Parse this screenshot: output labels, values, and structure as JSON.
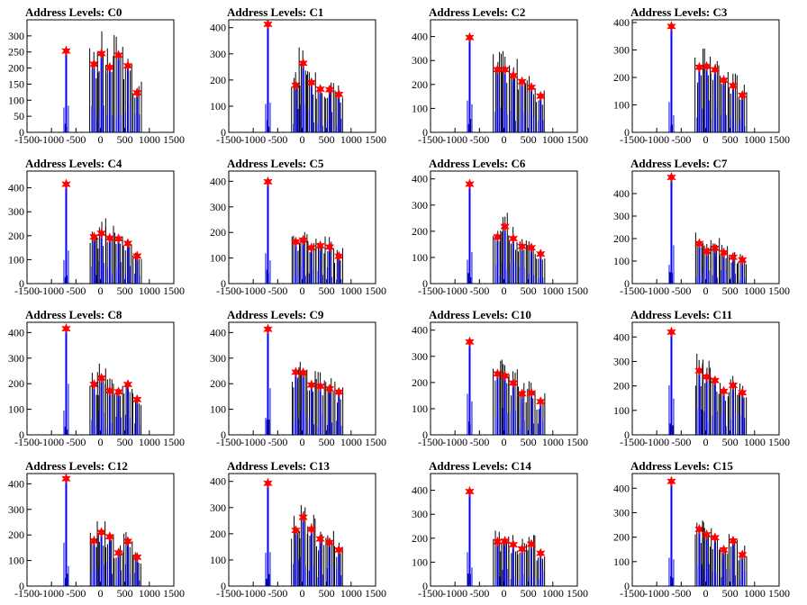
{
  "chart_data": [
    {
      "type": "bar",
      "title": "Address Levels: C0",
      "xlim": [
        -1500,
        1500
      ],
      "ylim": [
        0,
        350
      ],
      "yticks": [
        0,
        50,
        100,
        150,
        200,
        250,
        300
      ],
      "xticks": [
        -1500,
        -1000,
        -500,
        0,
        500,
        1000,
        1500
      ],
      "xtick_labels": [
        "-1500",
        "-1000",
        "-500",
        "0",
        "500",
        "1000",
        "1500"
      ],
      "peaks": [
        {
          "x": -700,
          "y": 253
        },
        {
          "x": -130,
          "y": 212
        },
        {
          "x": 20,
          "y": 245
        },
        {
          "x": 190,
          "y": 202
        },
        {
          "x": 370,
          "y": 240
        },
        {
          "x": 560,
          "y": 207
        },
        {
          "x": 750,
          "y": 123
        }
      ]
    },
    {
      "type": "bar",
      "title": "Address Levels: C1",
      "xlim": [
        -1500,
        1500
      ],
      "ylim": [
        0,
        430
      ],
      "yticks": [
        0,
        100,
        200,
        300,
        400
      ],
      "xticks": [
        -1500,
        -1000,
        -500,
        0,
        500,
        1000,
        1500
      ],
      "xtick_labels": [
        "-1500",
        "-1000",
        "-500",
        "0",
        "500",
        "1000",
        "1500"
      ],
      "peaks": [
        {
          "x": -700,
          "y": 413
        },
        {
          "x": -130,
          "y": 180
        },
        {
          "x": 20,
          "y": 264
        },
        {
          "x": 190,
          "y": 190
        },
        {
          "x": 370,
          "y": 165
        },
        {
          "x": 560,
          "y": 163
        },
        {
          "x": 750,
          "y": 145
        }
      ]
    },
    {
      "type": "bar",
      "title": "Address Levels: C2",
      "xlim": [
        -1500,
        1500
      ],
      "ylim": [
        0,
        470
      ],
      "yticks": [
        0,
        100,
        200,
        300,
        400
      ],
      "xticks": [
        -1500,
        -1000,
        -500,
        0,
        500,
        1000,
        1500
      ],
      "xtick_labels": [
        "-1500",
        "-1000",
        "-500",
        "0",
        "500",
        "1000",
        "1500"
      ],
      "peaks": [
        {
          "x": -700,
          "y": 396
        },
        {
          "x": -130,
          "y": 262
        },
        {
          "x": 20,
          "y": 262
        },
        {
          "x": 190,
          "y": 237
        },
        {
          "x": 370,
          "y": 212
        },
        {
          "x": 560,
          "y": 188
        },
        {
          "x": 750,
          "y": 151
        }
      ]
    },
    {
      "type": "bar",
      "title": "Address Levels: C3",
      "xlim": [
        -1500,
        1500
      ],
      "ylim": [
        0,
        410
      ],
      "yticks": [
        0,
        100,
        200,
        300,
        400
      ],
      "xticks": [
        -1500,
        -1000,
        -500,
        0,
        500,
        1000,
        1500
      ],
      "xtick_labels": [
        "-1500",
        "-1000",
        "-500",
        "0",
        "500",
        "1000",
        "1500"
      ],
      "peaks": [
        {
          "x": -700,
          "y": 386
        },
        {
          "x": -130,
          "y": 237
        },
        {
          "x": 20,
          "y": 240
        },
        {
          "x": 190,
          "y": 228
        },
        {
          "x": 370,
          "y": 190
        },
        {
          "x": 560,
          "y": 170
        },
        {
          "x": 750,
          "y": 135
        }
      ]
    },
    {
      "type": "bar",
      "title": "Address Levels: C4",
      "xlim": [
        -1500,
        1500
      ],
      "ylim": [
        0,
        470
      ],
      "yticks": [
        0,
        100,
        200,
        300,
        400
      ],
      "xticks": [
        -1500,
        -1000,
        -500,
        0,
        500,
        1000,
        1500
      ],
      "xtick_labels": [
        "-1500",
        "-1000",
        "-500",
        "0",
        "500",
        "1000",
        "1500"
      ],
      "peaks": [
        {
          "x": -700,
          "y": 415
        },
        {
          "x": -130,
          "y": 195
        },
        {
          "x": 20,
          "y": 210
        },
        {
          "x": 190,
          "y": 190
        },
        {
          "x": 370,
          "y": 187
        },
        {
          "x": 560,
          "y": 168
        },
        {
          "x": 750,
          "y": 115
        }
      ]
    },
    {
      "type": "bar",
      "title": "Address Levels: C5",
      "xlim": [
        -1500,
        1500
      ],
      "ylim": [
        0,
        440
      ],
      "yticks": [
        0,
        100,
        200,
        300,
        400
      ],
      "xticks": [
        -1500,
        -1000,
        -500,
        0,
        500,
        1000,
        1500
      ],
      "xtick_labels": [
        "-1500",
        "-1000",
        "-500",
        "0",
        "500",
        "1000",
        "1500"
      ],
      "peaks": [
        {
          "x": -700,
          "y": 398
        },
        {
          "x": -130,
          "y": 163
        },
        {
          "x": 20,
          "y": 170
        },
        {
          "x": 190,
          "y": 140
        },
        {
          "x": 370,
          "y": 148
        },
        {
          "x": 560,
          "y": 143
        },
        {
          "x": 750,
          "y": 107
        }
      ]
    },
    {
      "type": "bar",
      "title": "Address Levels: C6",
      "xlim": [
        -1500,
        1500
      ],
      "ylim": [
        0,
        430
      ],
      "yticks": [
        0,
        100,
        200,
        300,
        400
      ],
      "xticks": [
        -1500,
        -1000,
        -500,
        0,
        500,
        1000,
        1500
      ],
      "xtick_labels": [
        "-1500",
        "-1000",
        "-500",
        "0",
        "500",
        "1000",
        "1500"
      ],
      "peaks": [
        {
          "x": -700,
          "y": 380
        },
        {
          "x": -130,
          "y": 178
        },
        {
          "x": 20,
          "y": 218
        },
        {
          "x": 190,
          "y": 172
        },
        {
          "x": 370,
          "y": 142
        },
        {
          "x": 560,
          "y": 137
        },
        {
          "x": 750,
          "y": 113
        }
      ]
    },
    {
      "type": "bar",
      "title": "Address Levels: C7",
      "xlim": [
        -1500,
        1500
      ],
      "ylim": [
        0,
        500
      ],
      "yticks": [
        0,
        100,
        200,
        300,
        400
      ],
      "xticks": [
        -1500,
        -1000,
        -500,
        0,
        500,
        1000,
        1500
      ],
      "xtick_labels": [
        "-1500",
        "-1000",
        "-500",
        "0",
        "500",
        "1000",
        "1500"
      ],
      "peaks": [
        {
          "x": -700,
          "y": 472
        },
        {
          "x": -130,
          "y": 178
        },
        {
          "x": 20,
          "y": 143
        },
        {
          "x": 190,
          "y": 157
        },
        {
          "x": 370,
          "y": 137
        },
        {
          "x": 560,
          "y": 117
        },
        {
          "x": 750,
          "y": 105
        }
      ]
    },
    {
      "type": "bar",
      "title": "Address Levels: C8",
      "xlim": [
        -1500,
        1500
      ],
      "ylim": [
        0,
        440
      ],
      "yticks": [
        0,
        100,
        200,
        300,
        400
      ],
      "xticks": [
        -1500,
        -1000,
        -500,
        0,
        500,
        1000,
        1500
      ],
      "xtick_labels": [
        "-1500",
        "-1000",
        "-500",
        "0",
        "500",
        "1000",
        "1500"
      ],
      "peaks": [
        {
          "x": -700,
          "y": 415
        },
        {
          "x": -130,
          "y": 197
        },
        {
          "x": 20,
          "y": 222
        },
        {
          "x": 190,
          "y": 172
        },
        {
          "x": 370,
          "y": 168
        },
        {
          "x": 560,
          "y": 197
        },
        {
          "x": 750,
          "y": 138
        }
      ]
    },
    {
      "type": "bar",
      "title": "Address Levels: C9",
      "xlim": [
        -1500,
        1500
      ],
      "ylim": [
        0,
        440
      ],
      "yticks": [
        0,
        100,
        200,
        300,
        400
      ],
      "xticks": [
        -1500,
        -1000,
        -500,
        0,
        500,
        1000,
        1500
      ],
      "xtick_labels": [
        "-1500",
        "-1000",
        "-500",
        "0",
        "500",
        "1000",
        "1500"
      ],
      "peaks": [
        {
          "x": -700,
          "y": 413
        },
        {
          "x": -130,
          "y": 245
        },
        {
          "x": 20,
          "y": 243
        },
        {
          "x": 190,
          "y": 195
        },
        {
          "x": 370,
          "y": 190
        },
        {
          "x": 560,
          "y": 180
        },
        {
          "x": 750,
          "y": 167
        }
      ]
    },
    {
      "type": "bar",
      "title": "Address Levels: C10",
      "xlim": [
        -1500,
        1500
      ],
      "ylim": [
        0,
        430
      ],
      "yticks": [
        0,
        100,
        200,
        300,
        400
      ],
      "xticks": [
        -1500,
        -1000,
        -500,
        0,
        500,
        1000,
        1500
      ],
      "xtick_labels": [
        "-1500",
        "-1000",
        "-500",
        "0",
        "500",
        "1000",
        "1500"
      ],
      "peaks": [
        {
          "x": -700,
          "y": 355
        },
        {
          "x": -130,
          "y": 233
        },
        {
          "x": 20,
          "y": 225
        },
        {
          "x": 190,
          "y": 198
        },
        {
          "x": 370,
          "y": 157
        },
        {
          "x": 560,
          "y": 160
        },
        {
          "x": 750,
          "y": 127
        }
      ]
    },
    {
      "type": "bar",
      "title": "Address Levels: C11",
      "xlim": [
        -1500,
        1500
      ],
      "ylim": [
        0,
        460
      ],
      "yticks": [
        0,
        100,
        200,
        300,
        400
      ],
      "xticks": [
        -1500,
        -1000,
        -500,
        0,
        500,
        1000,
        1500
      ],
      "xtick_labels": [
        "-1500",
        "-1000",
        "-500",
        "0",
        "500",
        "1000",
        "1500"
      ],
      "peaks": [
        {
          "x": -700,
          "y": 420
        },
        {
          "x": -130,
          "y": 262
        },
        {
          "x": 20,
          "y": 237
        },
        {
          "x": 190,
          "y": 222
        },
        {
          "x": 370,
          "y": 178
        },
        {
          "x": 560,
          "y": 202
        },
        {
          "x": 750,
          "y": 172
        }
      ]
    },
    {
      "type": "bar",
      "title": "Address Levels: C12",
      "xlim": [
        -1500,
        1500
      ],
      "ylim": [
        0,
        440
      ],
      "yticks": [
        0,
        100,
        200,
        300,
        400
      ],
      "xticks": [
        -1500,
        -1000,
        -500,
        0,
        500,
        1000,
        1500
      ],
      "xtick_labels": [
        "-1500",
        "-1000",
        "-500",
        "0",
        "500",
        "1000",
        "1500"
      ],
      "peaks": [
        {
          "x": -700,
          "y": 420
        },
        {
          "x": -130,
          "y": 177
        },
        {
          "x": 20,
          "y": 210
        },
        {
          "x": 190,
          "y": 193
        },
        {
          "x": 370,
          "y": 130
        },
        {
          "x": 560,
          "y": 175
        },
        {
          "x": 750,
          "y": 113
        }
      ]
    },
    {
      "type": "bar",
      "title": "Address Levels: C13",
      "xlim": [
        -1500,
        1500
      ],
      "ylim": [
        0,
        430
      ],
      "yticks": [
        0,
        100,
        200,
        300,
        400
      ],
      "xticks": [
        -1500,
        -1000,
        -500,
        0,
        500,
        1000,
        1500
      ],
      "xtick_labels": [
        "-1500",
        "-1000",
        "-500",
        "0",
        "500",
        "1000",
        "1500"
      ],
      "peaks": [
        {
          "x": -700,
          "y": 393
        },
        {
          "x": -130,
          "y": 213
        },
        {
          "x": 20,
          "y": 263
        },
        {
          "x": 190,
          "y": 217
        },
        {
          "x": 370,
          "y": 180
        },
        {
          "x": 560,
          "y": 167
        },
        {
          "x": 750,
          "y": 138
        }
      ]
    },
    {
      "type": "bar",
      "title": "Address Levels: C14",
      "xlim": [
        -1500,
        1500
      ],
      "ylim": [
        0,
        470
      ],
      "yticks": [
        0,
        100,
        200,
        300,
        400
      ],
      "xticks": [
        -1500,
        -1000,
        -500,
        0,
        500,
        1000,
        1500
      ],
      "xtick_labels": [
        "-1500",
        "-1000",
        "-500",
        "0",
        "500",
        "1000",
        "1500"
      ],
      "peaks": [
        {
          "x": -700,
          "y": 395
        },
        {
          "x": -130,
          "y": 185
        },
        {
          "x": 20,
          "y": 188
        },
        {
          "x": 190,
          "y": 173
        },
        {
          "x": 370,
          "y": 155
        },
        {
          "x": 560,
          "y": 175
        },
        {
          "x": 750,
          "y": 137
        }
      ]
    },
    {
      "type": "bar",
      "title": "Address Levels: C15",
      "xlim": [
        -1500,
        1500
      ],
      "ylim": [
        0,
        460
      ],
      "yticks": [
        0,
        100,
        200,
        300,
        400
      ],
      "xticks": [
        -1500,
        -1000,
        -500,
        0,
        500,
        1000,
        1500
      ],
      "xtick_labels": [
        "-1500",
        "-1000",
        "-500",
        "0",
        "500",
        "1000",
        "1500"
      ],
      "peaks": [
        {
          "x": -700,
          "y": 428
        },
        {
          "x": -130,
          "y": 232
        },
        {
          "x": 20,
          "y": 210
        },
        {
          "x": 190,
          "y": 198
        },
        {
          "x": 370,
          "y": 148
        },
        {
          "x": 560,
          "y": 185
        },
        {
          "x": 750,
          "y": 128
        }
      ]
    }
  ],
  "colors": {
    "series": "#0000ff",
    "secondary": "#000000",
    "marker": "#ff0000"
  }
}
